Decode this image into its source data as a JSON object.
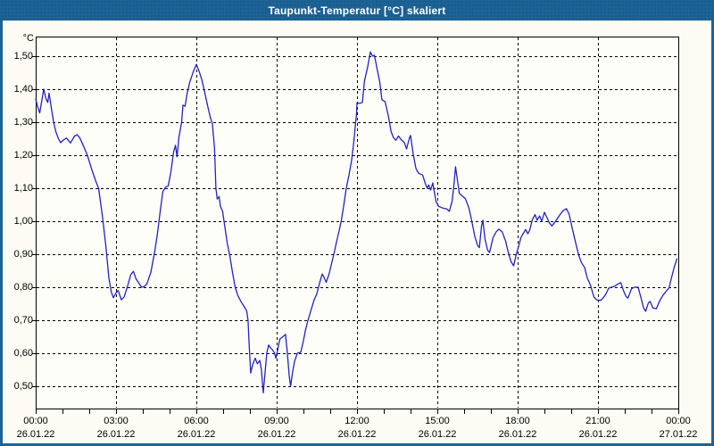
{
  "window": {
    "title": "Taupunkt-Temperatur [°C] skaliert"
  },
  "colors": {
    "titlebar_blue": "#1c6396",
    "window_border": "#1c6396",
    "page_background": "#fcfcf4",
    "plot_background": "#fefef8",
    "grid_black": "#000000",
    "series_blue": "#2222c3"
  },
  "chart_data": {
    "type": "line",
    "title": "Taupunkt-Temperatur [°C] skaliert",
    "grid": "dashed",
    "legend": "none",
    "xlim_hours": [
      0,
      24
    ],
    "ylim": [
      0.43,
      1.56
    ],
    "y_axis": {
      "unit": "°C",
      "ticks": [
        {
          "value": 1.5,
          "label": "1,50"
        },
        {
          "value": 1.4,
          "label": "1,40"
        },
        {
          "value": 1.3,
          "label": "1,30"
        },
        {
          "value": 1.2,
          "label": "1,20"
        },
        {
          "value": 1.1,
          "label": "1,10"
        },
        {
          "value": 1.0,
          "label": "1,00"
        },
        {
          "value": 0.9,
          "label": "0,90"
        },
        {
          "value": 0.8,
          "label": "0,80"
        },
        {
          "value": 0.7,
          "label": "0,70"
        },
        {
          "value": 0.6,
          "label": "0,60"
        },
        {
          "value": 0.5,
          "label": "0,50"
        }
      ]
    },
    "x_axis": {
      "minor_tick_every_hours": 1,
      "labels": [
        {
          "hour": 0,
          "time": "00:00",
          "date": "26.01.22"
        },
        {
          "hour": 3,
          "time": "03:00",
          "date": "26.01.22"
        },
        {
          "hour": 6,
          "time": "06:00",
          "date": "26.01.22"
        },
        {
          "hour": 9,
          "time": "09:00",
          "date": "26.01.22"
        },
        {
          "hour": 12,
          "time": "12:00",
          "date": "26.01.22"
        },
        {
          "hour": 15,
          "time": "15:00",
          "date": "26.01.22"
        },
        {
          "hour": 18,
          "time": "18:00",
          "date": "26.01.22"
        },
        {
          "hour": 21,
          "time": "21:00",
          "date": "26.01.22"
        },
        {
          "hour": 24,
          "time": "00:00",
          "date": "27.01.22"
        }
      ]
    },
    "series": [
      {
        "name": "Taupunkt-Temperatur skaliert",
        "color": "#2222c3",
        "points": [
          [
            0.0,
            1.37
          ],
          [
            0.08,
            1.345
          ],
          [
            0.15,
            1.328
          ],
          [
            0.3,
            1.4
          ],
          [
            0.38,
            1.372
          ],
          [
            0.45,
            1.36
          ],
          [
            0.5,
            1.388
          ],
          [
            0.58,
            1.345
          ],
          [
            0.67,
            1.3
          ],
          [
            0.75,
            1.272
          ],
          [
            0.85,
            1.25
          ],
          [
            0.93,
            1.238
          ],
          [
            1.05,
            1.247
          ],
          [
            1.15,
            1.252
          ],
          [
            1.3,
            1.237
          ],
          [
            1.45,
            1.258
          ],
          [
            1.55,
            1.262
          ],
          [
            1.65,
            1.252
          ],
          [
            1.8,
            1.225
          ],
          [
            1.93,
            1.2
          ],
          [
            2.1,
            1.155
          ],
          [
            2.25,
            1.12
          ],
          [
            2.35,
            1.1
          ],
          [
            2.5,
            1.01
          ],
          [
            2.62,
            0.925
          ],
          [
            2.73,
            0.83
          ],
          [
            2.82,
            0.787
          ],
          [
            2.9,
            0.768
          ],
          [
            3.0,
            0.783
          ],
          [
            3.08,
            0.79
          ],
          [
            3.2,
            0.762
          ],
          [
            3.3,
            0.77
          ],
          [
            3.42,
            0.8
          ],
          [
            3.55,
            0.838
          ],
          [
            3.65,
            0.848
          ],
          [
            3.75,
            0.825
          ],
          [
            3.85,
            0.813
          ],
          [
            3.95,
            0.8
          ],
          [
            4.05,
            0.802
          ],
          [
            4.15,
            0.81
          ],
          [
            4.3,
            0.845
          ],
          [
            4.45,
            0.91
          ],
          [
            4.55,
            0.965
          ],
          [
            4.65,
            1.03
          ],
          [
            4.75,
            1.09
          ],
          [
            4.85,
            1.103
          ],
          [
            4.95,
            1.107
          ],
          [
            5.05,
            1.15
          ],
          [
            5.15,
            1.21
          ],
          [
            5.22,
            1.23
          ],
          [
            5.28,
            1.195
          ],
          [
            5.35,
            1.255
          ],
          [
            5.45,
            1.3
          ],
          [
            5.5,
            1.352
          ],
          [
            5.58,
            1.348
          ],
          [
            5.65,
            1.385
          ],
          [
            5.75,
            1.42
          ],
          [
            5.88,
            1.452
          ],
          [
            6.0,
            1.475
          ],
          [
            6.1,
            1.455
          ],
          [
            6.2,
            1.43
          ],
          [
            6.3,
            1.395
          ],
          [
            6.42,
            1.35
          ],
          [
            6.52,
            1.315
          ],
          [
            6.6,
            1.295
          ],
          [
            6.68,
            1.22
          ],
          [
            6.73,
            1.1
          ],
          [
            6.78,
            1.067
          ],
          [
            6.85,
            1.075
          ],
          [
            6.9,
            1.045
          ],
          [
            6.98,
            1.03
          ],
          [
            7.07,
            0.98
          ],
          [
            7.15,
            0.935
          ],
          [
            7.25,
            0.895
          ],
          [
            7.35,
            0.845
          ],
          [
            7.45,
            0.8
          ],
          [
            7.55,
            0.775
          ],
          [
            7.67,
            0.756
          ],
          [
            7.78,
            0.742
          ],
          [
            7.88,
            0.728
          ],
          [
            7.93,
            0.7
          ],
          [
            7.97,
            0.63
          ],
          [
            8.03,
            0.54
          ],
          [
            8.1,
            0.565
          ],
          [
            8.2,
            0.585
          ],
          [
            8.28,
            0.568
          ],
          [
            8.37,
            0.578
          ],
          [
            8.43,
            0.55
          ],
          [
            8.47,
            0.508
          ],
          [
            8.5,
            0.48
          ],
          [
            8.57,
            0.545
          ],
          [
            8.63,
            0.6
          ],
          [
            8.7,
            0.625
          ],
          [
            8.78,
            0.615
          ],
          [
            8.85,
            0.61
          ],
          [
            8.92,
            0.6
          ],
          [
            8.97,
            0.585
          ],
          [
            9.05,
            0.615
          ],
          [
            9.12,
            0.643
          ],
          [
            9.2,
            0.648
          ],
          [
            9.33,
            0.657
          ],
          [
            9.4,
            0.6
          ],
          [
            9.47,
            0.53
          ],
          [
            9.52,
            0.5
          ],
          [
            9.6,
            0.545
          ],
          [
            9.67,
            0.576
          ],
          [
            9.77,
            0.6
          ],
          [
            9.9,
            0.603
          ],
          [
            10.0,
            0.638
          ],
          [
            10.08,
            0.672
          ],
          [
            10.17,
            0.7
          ],
          [
            10.28,
            0.73
          ],
          [
            10.4,
            0.762
          ],
          [
            10.5,
            0.78
          ],
          [
            10.6,
            0.812
          ],
          [
            10.7,
            0.84
          ],
          [
            10.78,
            0.828
          ],
          [
            10.85,
            0.815
          ],
          [
            10.95,
            0.838
          ],
          [
            11.05,
            0.872
          ],
          [
            11.15,
            0.905
          ],
          [
            11.25,
            0.943
          ],
          [
            11.33,
            0.97
          ],
          [
            11.42,
            1.005
          ],
          [
            11.5,
            1.045
          ],
          [
            11.6,
            1.1
          ],
          [
            11.7,
            1.14
          ],
          [
            11.8,
            1.185
          ],
          [
            11.88,
            1.24
          ],
          [
            11.95,
            1.3
          ],
          [
            11.98,
            1.322
          ],
          [
            12.0,
            1.358
          ],
          [
            12.1,
            1.357
          ],
          [
            12.2,
            1.36
          ],
          [
            12.28,
            1.425
          ],
          [
            12.4,
            1.468
          ],
          [
            12.5,
            1.513
          ],
          [
            12.58,
            1.5
          ],
          [
            12.65,
            1.503
          ],
          [
            12.75,
            1.462
          ],
          [
            12.85,
            1.422
          ],
          [
            12.93,
            1.368
          ],
          [
            13.05,
            1.362
          ],
          [
            13.17,
            1.32
          ],
          [
            13.27,
            1.273
          ],
          [
            13.35,
            1.255
          ],
          [
            13.45,
            1.245
          ],
          [
            13.55,
            1.258
          ],
          [
            13.65,
            1.247
          ],
          [
            13.77,
            1.238
          ],
          [
            13.85,
            1.219
          ],
          [
            13.95,
            1.25
          ],
          [
            14.0,
            1.26
          ],
          [
            14.1,
            1.203
          ],
          [
            14.2,
            1.16
          ],
          [
            14.3,
            1.145
          ],
          [
            14.45,
            1.14
          ],
          [
            14.55,
            1.115
          ],
          [
            14.62,
            1.1
          ],
          [
            14.68,
            1.11
          ],
          [
            14.75,
            1.094
          ],
          [
            14.83,
            1.116
          ],
          [
            14.95,
            1.06
          ],
          [
            15.05,
            1.045
          ],
          [
            15.2,
            1.04
          ],
          [
            15.35,
            1.037
          ],
          [
            15.45,
            1.03
          ],
          [
            15.55,
            1.06
          ],
          [
            15.62,
            1.11
          ],
          [
            15.68,
            1.165
          ],
          [
            15.75,
            1.125
          ],
          [
            15.82,
            1.085
          ],
          [
            15.95,
            1.075
          ],
          [
            16.05,
            1.068
          ],
          [
            16.18,
            1.04
          ],
          [
            16.28,
            1.003
          ],
          [
            16.4,
            0.954
          ],
          [
            16.5,
            0.927
          ],
          [
            16.57,
            0.92
          ],
          [
            16.65,
            0.985
          ],
          [
            16.7,
            1.003
          ],
          [
            16.78,
            0.946
          ],
          [
            16.88,
            0.912
          ],
          [
            16.95,
            0.905
          ],
          [
            17.08,
            0.95
          ],
          [
            17.2,
            0.968
          ],
          [
            17.3,
            0.976
          ],
          [
            17.42,
            0.968
          ],
          [
            17.55,
            0.94
          ],
          [
            17.65,
            0.905
          ],
          [
            17.75,
            0.878
          ],
          [
            17.85,
            0.865
          ],
          [
            17.95,
            0.9
          ],
          [
            18.05,
            0.928
          ],
          [
            18.12,
            0.95
          ],
          [
            18.2,
            0.962
          ],
          [
            18.3,
            0.975
          ],
          [
            18.38,
            0.962
          ],
          [
            18.45,
            0.973
          ],
          [
            18.55,
            1.005
          ],
          [
            18.65,
            1.02
          ],
          [
            18.73,
            1.003
          ],
          [
            18.82,
            1.016
          ],
          [
            18.9,
            1.0
          ],
          [
            19.0,
            1.027
          ],
          [
            19.1,
            1.01
          ],
          [
            19.18,
            0.995
          ],
          [
            19.28,
            0.986
          ],
          [
            19.4,
            0.998
          ],
          [
            19.5,
            1.01
          ],
          [
            19.6,
            1.022
          ],
          [
            19.7,
            1.032
          ],
          [
            19.82,
            1.038
          ],
          [
            19.92,
            1.022
          ],
          [
            20.05,
            0.975
          ],
          [
            20.15,
            0.94
          ],
          [
            20.27,
            0.9
          ],
          [
            20.38,
            0.875
          ],
          [
            20.5,
            0.86
          ],
          [
            20.6,
            0.828
          ],
          [
            20.72,
            0.806
          ],
          [
            20.85,
            0.77
          ],
          [
            20.95,
            0.762
          ],
          [
            21.1,
            0.76
          ],
          [
            21.2,
            0.768
          ],
          [
            21.3,
            0.78
          ],
          [
            21.4,
            0.797
          ],
          [
            21.5,
            0.8
          ],
          [
            21.62,
            0.803
          ],
          [
            21.75,
            0.81
          ],
          [
            21.85,
            0.814
          ],
          [
            21.95,
            0.79
          ],
          [
            22.05,
            0.772
          ],
          [
            22.12,
            0.767
          ],
          [
            22.25,
            0.795
          ],
          [
            22.35,
            0.8
          ],
          [
            22.5,
            0.8
          ],
          [
            22.6,
            0.77
          ],
          [
            22.7,
            0.738
          ],
          [
            22.78,
            0.727
          ],
          [
            22.88,
            0.752
          ],
          [
            22.95,
            0.757
          ],
          [
            23.05,
            0.737
          ],
          [
            23.18,
            0.735
          ],
          [
            23.3,
            0.758
          ],
          [
            23.42,
            0.775
          ],
          [
            23.55,
            0.788
          ],
          [
            23.65,
            0.797
          ],
          [
            23.75,
            0.83
          ],
          [
            23.85,
            0.862
          ],
          [
            23.95,
            0.886
          ]
        ]
      }
    ]
  }
}
